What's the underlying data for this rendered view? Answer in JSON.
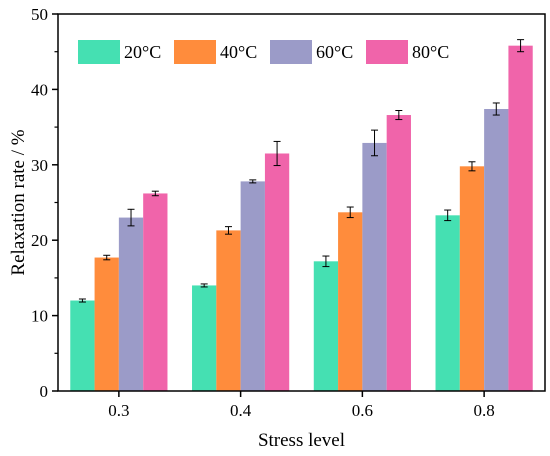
{
  "chart_data": {
    "type": "bar",
    "title": "",
    "xlabel": "Stress level",
    "ylabel": "Relaxation rate / %",
    "categories": [
      "0.3",
      "0.4",
      "0.6",
      "0.8"
    ],
    "ylim": [
      0,
      50
    ],
    "yticks": [
      0,
      10,
      20,
      30,
      40,
      50
    ],
    "grid": false,
    "legend_position": "top-left",
    "series": [
      {
        "name": "20°C",
        "color": "#45E0B2",
        "values": [
          12.0,
          14.0,
          17.2,
          23.3
        ],
        "errors": [
          0.2,
          0.2,
          0.7,
          0.7
        ]
      },
      {
        "name": "40°C",
        "color": "#FF8C3C",
        "values": [
          17.7,
          21.3,
          23.7,
          29.8
        ],
        "errors": [
          0.3,
          0.5,
          0.7,
          0.6
        ]
      },
      {
        "name": "60°C",
        "color": "#9B9BC8",
        "values": [
          23.0,
          27.8,
          32.9,
          37.4
        ],
        "errors": [
          1.1,
          0.2,
          1.7,
          0.8
        ]
      },
      {
        "name": "80°C",
        "color": "#F064AA",
        "values": [
          26.2,
          31.5,
          36.6,
          45.8
        ],
        "errors": [
          0.3,
          1.6,
          0.6,
          0.8
        ]
      }
    ]
  }
}
